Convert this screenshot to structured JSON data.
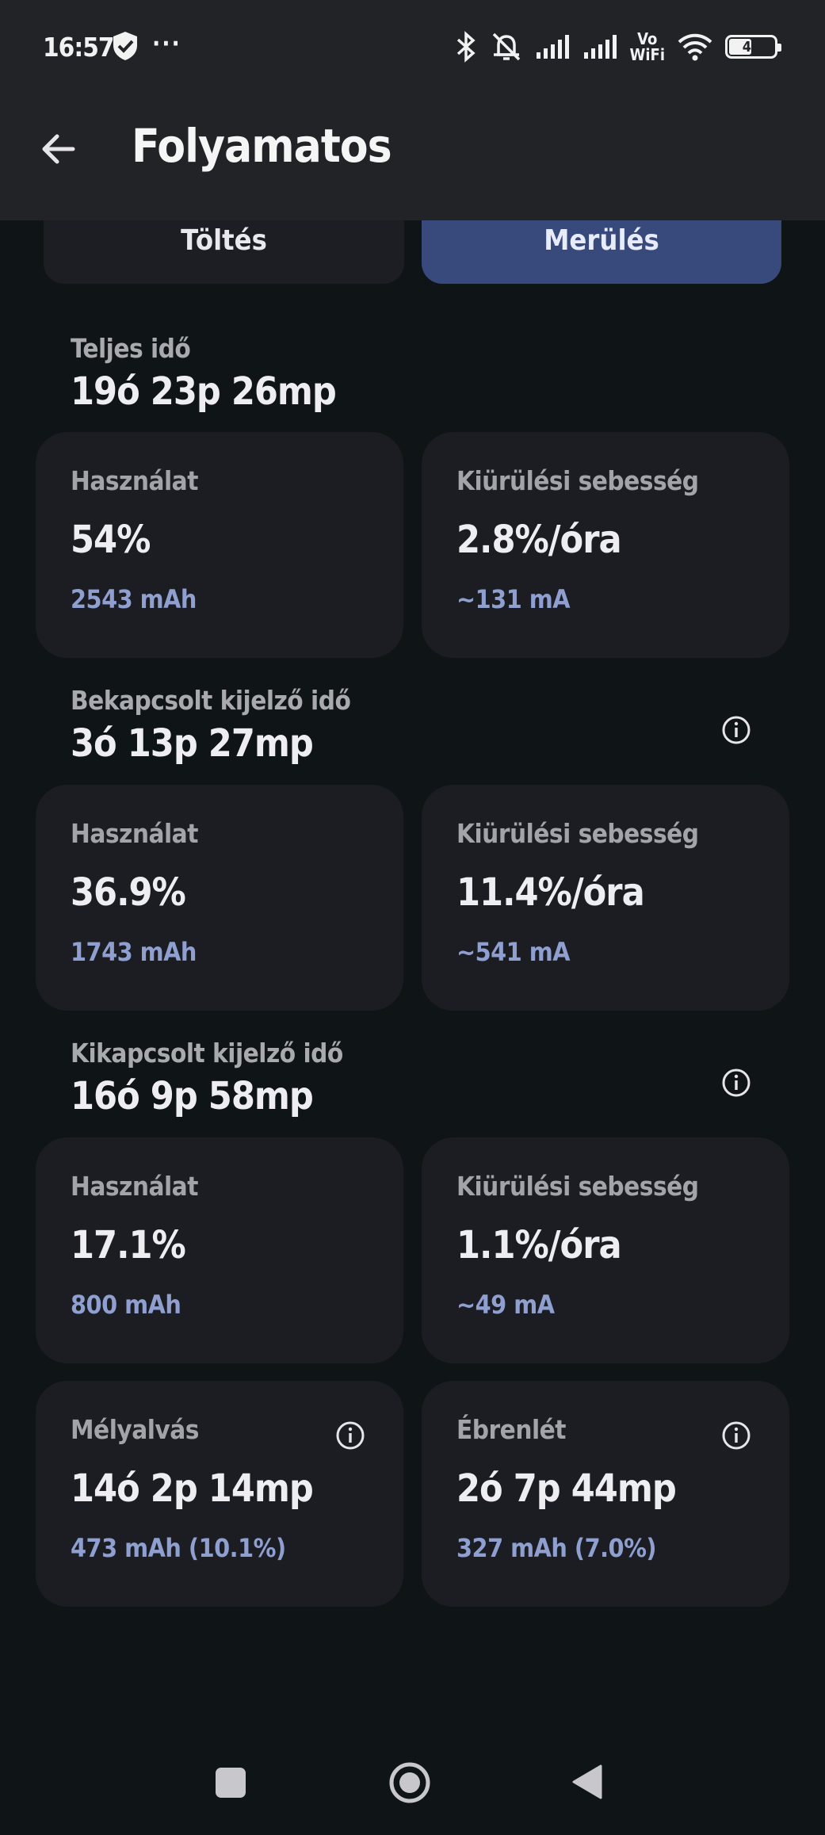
{
  "status_bar": {
    "time": "16:57",
    "more": "···",
    "vowifi_top": "Vo",
    "vowifi_bottom": "WiFi",
    "battery_level": "46",
    "battery_fraction": 0.46,
    "icons": [
      "shield-check-icon",
      "bluetooth-icon",
      "muted-bell-icon",
      "signal-icon",
      "signal-icon",
      "wifi-icon",
      "battery-icon"
    ]
  },
  "app_bar": {
    "back_icon": "arrow-left-icon",
    "title": "Folyamatos"
  },
  "tabs": [
    {
      "label": "Töltés",
      "selected": false
    },
    {
      "label": "Merülés",
      "selected": true
    }
  ],
  "sections": {
    "total": {
      "label": "Teljes idő",
      "value": "19ó 23p 26mp",
      "usage": {
        "label": "Használat",
        "value": "54%",
        "sub": "2543 mAh"
      },
      "rate": {
        "label": "Kiürülési sebesség",
        "value": "2.8%/óra",
        "sub": "~131 mA"
      }
    },
    "screen_on": {
      "label": "Bekapcsolt kijelző idő",
      "value": "3ó 13p 27mp",
      "usage": {
        "label": "Használat",
        "value": "36.9%",
        "sub": "1743 mAh"
      },
      "rate": {
        "label": "Kiürülési sebesség",
        "value": "11.4%/óra",
        "sub": "~541 mA"
      }
    },
    "screen_off": {
      "label": "Kikapcsolt kijelző idő",
      "value": "16ó 9p 58mp",
      "usage": {
        "label": "Használat",
        "value": "17.1%",
        "sub": "800 mAh"
      },
      "rate": {
        "label": "Kiürülési sebesség",
        "value": "1.1%/óra",
        "sub": "~49 mA"
      }
    },
    "deep_sleep": {
      "label": "Mélyalvás",
      "value": "14ó 2p 14mp",
      "sub": "473 mAh (10.1%)"
    },
    "awake": {
      "label": "Ébrenlét",
      "value": "2ó 7p 44mp",
      "sub": "327 mAh (7.0%)"
    }
  },
  "colors": {
    "background": "#0f1416",
    "app_bar": "#222327",
    "card": "#1c1d22",
    "accent_tab": "#384a7c",
    "sub_text": "#8e9fd0"
  }
}
